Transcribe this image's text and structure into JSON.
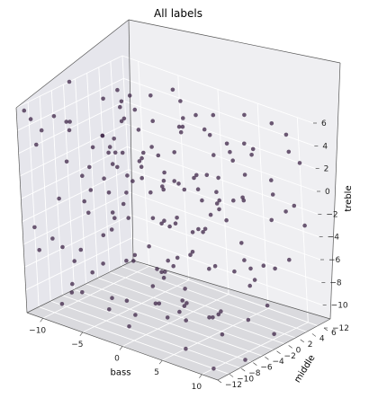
{
  "chart_data": {
    "type": "scatter",
    "projection": "3d",
    "title": "All labels",
    "xlabel": "bass",
    "ylabel": "middle",
    "zlabel": "treble",
    "xlim": [
      -12,
      12
    ],
    "ylim": [
      -12,
      6
    ],
    "zlim": [
      -12,
      6
    ],
    "x_ticks": [
      -10,
      -5,
      0,
      5,
      10
    ],
    "y_ticks": [
      -12,
      -10,
      -8,
      -6,
      -4,
      -2,
      0,
      2,
      4,
      6
    ],
    "z_ticks": [
      -12,
      -10,
      -8,
      -6,
      -4,
      -2,
      0,
      2,
      4,
      6
    ],
    "x_tick_labels": [
      "−10",
      "−5",
      "0",
      "5",
      "10"
    ],
    "y_tick_labels": [
      "−12",
      "−10",
      "−8",
      "−6",
      "−4",
      "−2",
      "0",
      "2",
      "4",
      "6"
    ],
    "z_tick_labels": [
      "−12",
      "−10",
      "−8",
      "−6",
      "−4",
      "−2",
      "0",
      "2",
      "4",
      "6"
    ],
    "grid": true,
    "marker_color": "#3d2447",
    "marker_alpha": 0.75,
    "points": [
      [
        -11,
        -11,
        5
      ],
      [
        -9,
        -10,
        -11
      ],
      [
        -7,
        4,
        2
      ],
      [
        -5,
        -6,
        -3
      ],
      [
        -3,
        1,
        -9
      ],
      [
        -1,
        -9,
        4
      ],
      [
        1,
        5,
        -5
      ],
      [
        3,
        -2,
        0
      ],
      [
        5,
        -12,
        -7
      ],
      [
        7,
        2,
        3
      ],
      [
        9,
        -7,
        -10
      ],
      [
        11,
        0,
        1
      ],
      [
        -10,
        -3,
        -1
      ],
      [
        -8,
        6,
        -12
      ],
      [
        -6,
        -11,
        6
      ],
      [
        -4,
        3,
        -6
      ],
      [
        -2,
        -5,
        2
      ],
      [
        0,
        -1,
        -11
      ],
      [
        2,
        -8,
        5
      ],
      [
        4,
        4,
        -2
      ],
      [
        6,
        -10,
        -8
      ],
      [
        8,
        1,
        4
      ],
      [
        10,
        -4,
        -4
      ],
      [
        -12,
        -8,
        3
      ],
      [
        -11,
        2,
        -7
      ],
      [
        -9,
        -1,
        0
      ],
      [
        -7,
        -12,
        -5
      ],
      [
        -5,
        5,
        5
      ],
      [
        -3,
        -7,
        -10
      ],
      [
        -1,
        0,
        -1
      ],
      [
        1,
        -11,
        3
      ],
      [
        3,
        6,
        -9
      ],
      [
        5,
        -3,
        2
      ],
      [
        7,
        -9,
        -3
      ],
      [
        9,
        3,
        6
      ],
      [
        11,
        -6,
        -12
      ],
      [
        -12,
        4,
        -2
      ],
      [
        -10,
        -12,
        -6
      ],
      [
        -8,
        -2,
        1
      ],
      [
        -6,
        1,
        -8
      ],
      [
        -4,
        -10,
        4
      ],
      [
        -2,
        5,
        -4
      ],
      [
        0,
        -6,
        0
      ],
      [
        2,
        2,
        -12
      ],
      [
        4,
        -12,
        6
      ],
      [
        6,
        -4,
        -1
      ],
      [
        8,
        6,
        -7
      ],
      [
        10,
        -8,
        2
      ],
      [
        -11,
        -5,
        -9
      ],
      [
        -9,
        3,
        4
      ],
      [
        -7,
        -8,
        -2
      ],
      [
        -5,
        0,
        -11
      ],
      [
        -3,
        -12,
        1
      ],
      [
        -1,
        4,
        -6
      ],
      [
        1,
        -2,
        5
      ],
      [
        3,
        -10,
        -8
      ],
      [
        5,
        1,
        3
      ],
      [
        7,
        -5,
        -5
      ],
      [
        9,
        -11,
        0
      ],
      [
        11,
        5,
        -3
      ],
      [
        -12,
        -3,
        6
      ],
      [
        -10,
        0,
        -4
      ],
      [
        -8,
        -9,
        5
      ],
      [
        -6,
        6,
        -1
      ],
      [
        -4,
        -4,
        -7
      ],
      [
        -2,
        -11,
        2
      ],
      [
        0,
        3,
        -9
      ],
      [
        2,
        -7,
        4
      ],
      [
        4,
        -1,
        -11
      ],
      [
        6,
        2,
        1
      ],
      [
        8,
        -12,
        -6
      ],
      [
        10,
        4,
        5
      ],
      [
        -11,
        -7,
        -3
      ],
      [
        -9,
        1,
        -10
      ],
      [
        -7,
        -4,
        6
      ],
      [
        -5,
        -10,
        -2
      ],
      [
        -3,
        6,
        3
      ],
      [
        -1,
        -3,
        -12
      ],
      [
        1,
        0,
        0
      ],
      [
        3,
        -6,
        -5
      ],
      [
        5,
        4,
        -9
      ],
      [
        7,
        -11,
        4
      ],
      [
        9,
        -2,
        -7
      ],
      [
        11,
        -9,
        2
      ],
      [
        -12,
        1,
        -11
      ],
      [
        -10,
        -6,
        3
      ],
      [
        -8,
        3,
        -3
      ],
      [
        -6,
        -12,
        -8
      ],
      [
        -4,
        0,
        6
      ],
      [
        -2,
        -8,
        -1
      ],
      [
        0,
        5,
        4
      ],
      [
        2,
        -4,
        -10
      ],
      [
        4,
        -9,
        2
      ],
      [
        6,
        6,
        -4
      ],
      [
        8,
        -1,
        0
      ],
      [
        10,
        -10,
        -12
      ],
      [
        -11,
        4,
        1
      ],
      [
        -9,
        -11,
        -5
      ],
      [
        -7,
        -1,
        5
      ],
      [
        -5,
        2,
        -6
      ],
      [
        -3,
        -5,
        0
      ],
      [
        -1,
        -12,
        -8
      ],
      [
        1,
        3,
        3
      ],
      [
        3,
        -7,
        -2
      ],
      [
        5,
        -3,
        6
      ],
      [
        7,
        0,
        -11
      ],
      [
        9,
        -12,
        4
      ],
      [
        11,
        2,
        -1
      ],
      [
        -12,
        -10,
        -5
      ],
      [
        -10,
        5,
        2
      ],
      [
        -8,
        -6,
        -9
      ],
      [
        -6,
        -2,
        4
      ],
      [
        -4,
        4,
        -12
      ],
      [
        -2,
        -9,
        5
      ],
      [
        0,
        -4,
        -3
      ],
      [
        2,
        6,
        -7
      ],
      [
        4,
        -11,
        0
      ],
      [
        6,
        -6,
        3
      ],
      [
        8,
        2,
        -10
      ],
      [
        10,
        -3,
        6
      ],
      [
        -11,
        0,
        -8
      ],
      [
        -9,
        -8,
        1
      ],
      [
        -7,
        5,
        -4
      ],
      [
        -5,
        -1,
        3
      ],
      [
        -3,
        -10,
        -10
      ],
      [
        -1,
        1,
        6
      ],
      [
        1,
        -5,
        -6
      ],
      [
        3,
        4,
        1
      ],
      [
        5,
        -8,
        -12
      ],
      [
        7,
        -2,
        5
      ],
      [
        9,
        6,
        -2
      ],
      [
        11,
        -11,
        -7
      ],
      [
        -12,
        2,
        0
      ],
      [
        -10,
        -7,
        -11
      ],
      [
        -8,
        0,
        4
      ],
      [
        -6,
        -5,
        -5
      ],
      [
        -4,
        -12,
        2
      ],
      [
        -2,
        3,
        -8
      ],
      [
        0,
        -10,
        1
      ],
      [
        2,
        -1,
        -4
      ],
      [
        4,
        5,
        5
      ],
      [
        6,
        -9,
        -9
      ],
      [
        8,
        -5,
        3
      ],
      [
        10,
        1,
        -6
      ],
      [
        -11,
        -12,
        6
      ],
      [
        -9,
        6,
        -12
      ],
      [
        -7,
        -3,
        0
      ],
      [
        -5,
        -7,
        4
      ],
      [
        -3,
        2,
        -5
      ],
      [
        -1,
        -6,
        2
      ],
      [
        1,
        -12,
        -10
      ],
      [
        3,
        1,
        -1
      ],
      [
        5,
        -10,
        4
      ],
      [
        7,
        3,
        -7
      ],
      [
        9,
        -4,
        1
      ],
      [
        11,
        -1,
        -11
      ],
      [
        -12,
        -9,
        2
      ],
      [
        -10,
        3,
        -7
      ],
      [
        -8,
        -11,
        6
      ],
      [
        -6,
        4,
        -3
      ],
      [
        -4,
        -2,
        1
      ],
      [
        -2,
        -7,
        -11
      ],
      [
        0,
        0,
        5
      ],
      [
        2,
        -12,
        -4
      ],
      [
        4,
        2,
        -8
      ],
      [
        6,
        -3,
        4
      ],
      [
        8,
        -8,
        -1
      ],
      [
        10,
        6,
        2
      ],
      [
        -11,
        -4,
        -12
      ],
      [
        -9,
        1,
        5
      ],
      [
        -7,
        -9,
        -6
      ],
      [
        -5,
        6,
        1
      ],
      [
        -3,
        -1,
        -9
      ],
      [
        -1,
        -10,
        3
      ],
      [
        1,
        4,
        -3
      ],
      [
        3,
        -4,
        6
      ],
      [
        5,
        -11,
        -5
      ],
      [
        7,
        5,
        0
      ],
      [
        9,
        -9,
        -8
      ],
      [
        11,
        3,
        4
      ]
    ]
  }
}
